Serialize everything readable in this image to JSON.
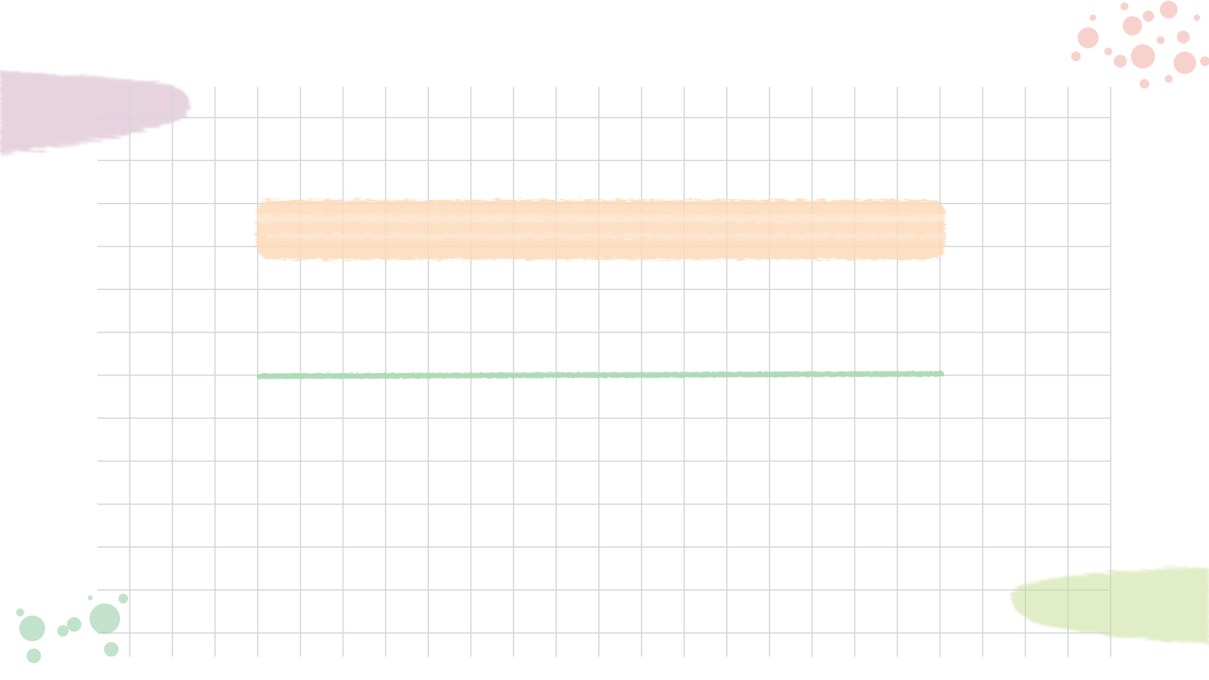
{
  "page": {
    "background": "#ffffff"
  },
  "grid": {
    "line_color": "#d4d4de",
    "columns": 23,
    "rows": 13
  },
  "strokes": [
    {
      "kind": "crayon-highlight",
      "color": "#fdd9b8"
    },
    {
      "kind": "crayon-line",
      "color": "#a8d8b0"
    },
    {
      "kind": "crayon-line",
      "color": "#a8d8b0"
    }
  ],
  "decorations": [
    {
      "kind": "watercolor-smudge",
      "corner": "top-left",
      "color": "#c9a0b8"
    },
    {
      "kind": "watercolor-dots",
      "corner": "top-right",
      "color": "#f2b5ad"
    },
    {
      "kind": "watercolor-dots",
      "corner": "bottom-left",
      "color": "#a9d7b6"
    },
    {
      "kind": "watercolor-smudge",
      "corner": "bottom-right",
      "color": "#c7df98"
    }
  ]
}
